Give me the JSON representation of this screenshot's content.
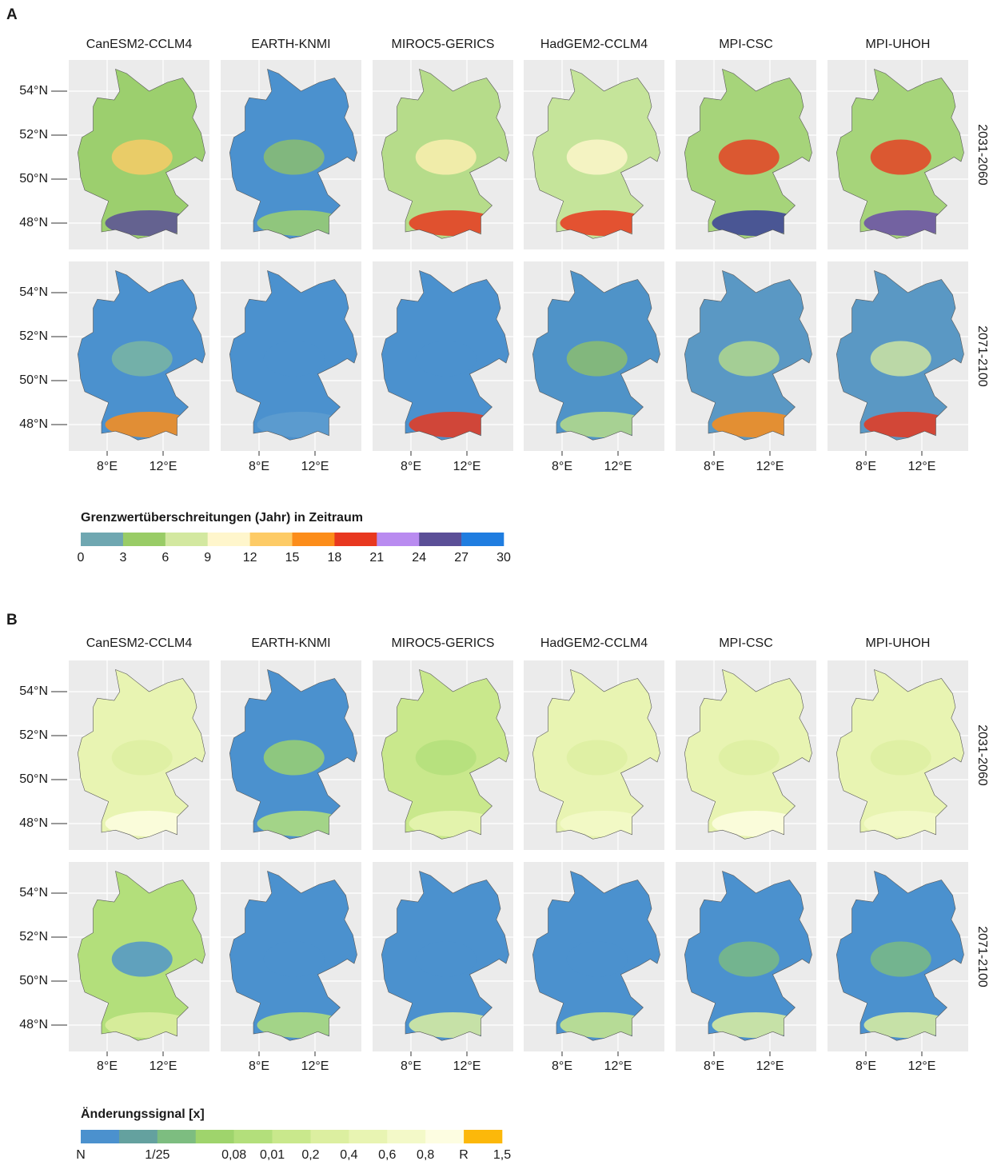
{
  "panels": [
    {
      "label": "A",
      "models": [
        "CanESM2-CCLM4",
        "EARTH-KNMI",
        "MIROC5-GERICS",
        "HadGEM2-CCLM4",
        "MPI-CSC",
        "MPI-UHOH"
      ],
      "periods": [
        "2031-2060",
        "2071-2100"
      ],
      "lat_ticks": [
        "54°N",
        "52°N",
        "50°N",
        "48°N"
      ],
      "lon_ticks": [
        "8°E",
        "12°E"
      ],
      "legend": {
        "title": "Grenzwertüberschreitungen (Jahr) in Zeitraum",
        "colors": [
          "#6fa7b1",
          "#99cc66",
          "#d3e8a0",
          "#fff6cc",
          "#fdcb66",
          "#fc8d1a",
          "#e8381f",
          "#b98bf0",
          "#5b4f97",
          "#1f7de0"
        ],
        "lim": [
          0,
          30
        ],
        "ticks": [
          0,
          3,
          6,
          9,
          12,
          15,
          18,
          21,
          24,
          27,
          30
        ]
      }
    },
    {
      "label": "B",
      "models": [
        "CanESM2-CCLM4",
        "EARTH-KNMI",
        "MIROC5-GERICS",
        "HadGEM2-CCLM4",
        "MPI-CSC",
        "MPI-UHOH"
      ],
      "periods": [
        "2031-2060",
        "2071-2100"
      ],
      "lat_ticks": [
        "54°N",
        "52°N",
        "50°N",
        "48°N"
      ],
      "lon_ticks": [
        "8°E",
        "12°E"
      ],
      "legend": {
        "title": "Änderungssignal [x]",
        "colors": [
          "#4b91ce",
          "#64a19f",
          "#7dbd80",
          "#9fd46c",
          "#b3df7b",
          "#c9e88c",
          "#dcefa0",
          "#e8f4b2",
          "#f3f9c8",
          "#fdfde1",
          "#fcb80a"
        ],
        "labels": [
          "N",
          null,
          "1/25",
          null,
          "0,08",
          "0,01",
          "0,2",
          "0,4",
          "0,6",
          "0,8",
          "R",
          "1,5"
        ]
      }
    }
  ]
}
